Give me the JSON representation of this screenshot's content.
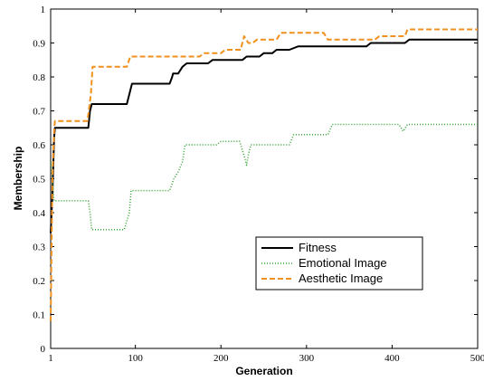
{
  "chart_data": {
    "type": "line",
    "xlabel": "Generation",
    "ylabel": "Membership",
    "xlim": [
      1,
      500
    ],
    "ylim": [
      0,
      1
    ],
    "xticks": [
      {
        "value": 1,
        "label": "1"
      },
      {
        "value": 100,
        "label": "100"
      },
      {
        "value": 200,
        "label": "200"
      },
      {
        "value": 300,
        "label": "300"
      },
      {
        "value": 400,
        "label": "400"
      },
      {
        "value": 500,
        "label": "500"
      }
    ],
    "yticks": [
      {
        "value": 0,
        "label": "0"
      },
      {
        "value": 0.1,
        "label": "0.1"
      },
      {
        "value": 0.2,
        "label": "0.2"
      },
      {
        "value": 0.3,
        "label": "0.3"
      },
      {
        "value": 0.4,
        "label": "0.4"
      },
      {
        "value": 0.5,
        "label": "0.5"
      },
      {
        "value": 0.6,
        "label": "0.6"
      },
      {
        "value": 0.7,
        "label": "0.7"
      },
      {
        "value": 0.8,
        "label": "0.8"
      },
      {
        "value": 0.9,
        "label": "0.9"
      },
      {
        "value": 1,
        "label": "1"
      }
    ],
    "grid": false,
    "legend_position": "lower-right",
    "series": [
      {
        "name": "Fitness",
        "color": "#000000",
        "style": "solid",
        "points": [
          [
            1,
            0.34
          ],
          [
            3,
            0.45
          ],
          [
            5,
            0.62
          ],
          [
            6,
            0.65
          ],
          [
            45,
            0.65
          ],
          [
            47,
            0.7
          ],
          [
            49,
            0.72
          ],
          [
            90,
            0.72
          ],
          [
            94,
            0.76
          ],
          [
            96,
            0.78
          ],
          [
            140,
            0.78
          ],
          [
            143,
            0.8
          ],
          [
            144,
            0.81
          ],
          [
            150,
            0.81
          ],
          [
            155,
            0.83
          ],
          [
            160,
            0.84
          ],
          [
            185,
            0.84
          ],
          [
            190,
            0.85
          ],
          [
            225,
            0.85
          ],
          [
            230,
            0.86
          ],
          [
            245,
            0.86
          ],
          [
            250,
            0.87
          ],
          [
            260,
            0.87
          ],
          [
            265,
            0.88
          ],
          [
            280,
            0.88
          ],
          [
            290,
            0.89
          ],
          [
            370,
            0.89
          ],
          [
            375,
            0.9
          ],
          [
            415,
            0.9
          ],
          [
            420,
            0.91
          ],
          [
            500,
            0.91
          ]
        ]
      },
      {
        "name": "Emotional Image",
        "color": "#2ca02c",
        "style": "dotted",
        "points": [
          [
            1,
            0.55
          ],
          [
            3,
            0.5
          ],
          [
            5,
            0.435
          ],
          [
            45,
            0.435
          ],
          [
            47,
            0.4
          ],
          [
            49,
            0.35
          ],
          [
            87,
            0.35
          ],
          [
            93,
            0.4
          ],
          [
            95,
            0.465
          ],
          [
            140,
            0.465
          ],
          [
            145,
            0.5
          ],
          [
            150,
            0.52
          ],
          [
            155,
            0.55
          ],
          [
            158,
            0.6
          ],
          [
            195,
            0.6
          ],
          [
            200,
            0.61
          ],
          [
            222,
            0.61
          ],
          [
            228,
            0.56
          ],
          [
            230,
            0.54
          ],
          [
            232,
            0.57
          ],
          [
            235,
            0.6
          ],
          [
            280,
            0.6
          ],
          [
            285,
            0.63
          ],
          [
            325,
            0.63
          ],
          [
            330,
            0.66
          ],
          [
            408,
            0.66
          ],
          [
            413,
            0.64
          ],
          [
            418,
            0.66
          ],
          [
            500,
            0.66
          ]
        ]
      },
      {
        "name": "Aesthetic Image",
        "color": "#f0901e",
        "style": "dashed",
        "points": [
          [
            1,
            0.08
          ],
          [
            3,
            0.5
          ],
          [
            5,
            0.64
          ],
          [
            6,
            0.67
          ],
          [
            44,
            0.67
          ],
          [
            48,
            0.75
          ],
          [
            50,
            0.83
          ],
          [
            90,
            0.83
          ],
          [
            94,
            0.86
          ],
          [
            175,
            0.86
          ],
          [
            180,
            0.87
          ],
          [
            200,
            0.87
          ],
          [
            205,
            0.88
          ],
          [
            223,
            0.88
          ],
          [
            227,
            0.92
          ],
          [
            232,
            0.9
          ],
          [
            237,
            0.9
          ],
          [
            242,
            0.91
          ],
          [
            265,
            0.91
          ],
          [
            270,
            0.93
          ],
          [
            320,
            0.93
          ],
          [
            325,
            0.91
          ],
          [
            380,
            0.91
          ],
          [
            385,
            0.92
          ],
          [
            415,
            0.92
          ],
          [
            418,
            0.94
          ],
          [
            500,
            0.94
          ]
        ]
      }
    ]
  }
}
